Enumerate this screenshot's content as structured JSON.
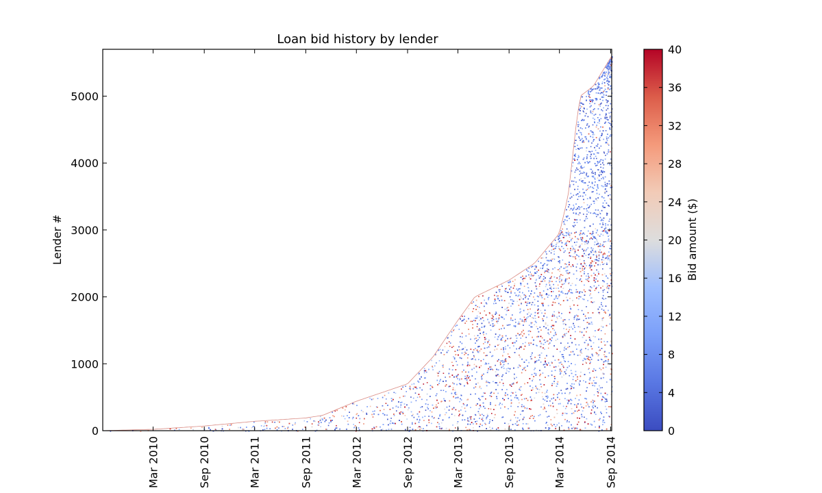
{
  "chart_data": {
    "type": "scatter",
    "title": "Loan bid history by lender",
    "xlabel": "",
    "ylabel": "Lender #",
    "colorbar_label": "Bid amount ($)",
    "x_range": [
      "2009-09-01",
      "2014-09-05"
    ],
    "ylim": [
      0,
      5700
    ],
    "x_ticks": [
      {
        "label": "Mar 2010",
        "date": "2010-03-01"
      },
      {
        "label": "Sep 2010",
        "date": "2010-09-01"
      },
      {
        "label": "Mar 2011",
        "date": "2011-03-01"
      },
      {
        "label": "Sep 2011",
        "date": "2011-09-01"
      },
      {
        "label": "Mar 2012",
        "date": "2012-03-01"
      },
      {
        "label": "Sep 2012",
        "date": "2012-09-01"
      },
      {
        "label": "Mar 2013",
        "date": "2013-03-01"
      },
      {
        "label": "Sep 2013",
        "date": "2013-09-01"
      },
      {
        "label": "Mar 2014",
        "date": "2014-03-01"
      },
      {
        "label": "Sep 2014",
        "date": "2014-09-01"
      }
    ],
    "y_ticks": [
      0,
      1000,
      2000,
      3000,
      4000,
      5000
    ],
    "colorbar_ticks": [
      0,
      4,
      8,
      12,
      16,
      20,
      24,
      28,
      32,
      36,
      40
    ],
    "color_range": [
      0,
      40
    ],
    "colormap": "coolwarm",
    "colormap_colors": {
      "low": "#3b4cc0",
      "mid": "#dddddd",
      "high": "#b40426"
    },
    "lender_join_curve": [
      {
        "date": "2009-09-01",
        "lender": 0
      },
      {
        "date": "2010-03-01",
        "lender": 20
      },
      {
        "date": "2010-09-01",
        "lender": 70
      },
      {
        "date": "2011-03-01",
        "lender": 140
      },
      {
        "date": "2011-09-01",
        "lender": 190
      },
      {
        "date": "2011-11-01",
        "lender": 230
      },
      {
        "date": "2012-03-01",
        "lender": 440
      },
      {
        "date": "2012-09-01",
        "lender": 700
      },
      {
        "date": "2012-12-01",
        "lender": 1100
      },
      {
        "date": "2013-03-01",
        "lender": 1650
      },
      {
        "date": "2013-05-01",
        "lender": 2000
      },
      {
        "date": "2013-09-01",
        "lender": 2250
      },
      {
        "date": "2013-12-01",
        "lender": 2500
      },
      {
        "date": "2014-03-01",
        "lender": 2950
      },
      {
        "date": "2014-04-01",
        "lender": 3500
      },
      {
        "date": "2014-05-01",
        "lender": 4600
      },
      {
        "date": "2014-05-15",
        "lender": 5000
      },
      {
        "date": "2014-07-01",
        "lender": 5150
      },
      {
        "date": "2014-09-05",
        "lender": 5600
      }
    ]
  }
}
